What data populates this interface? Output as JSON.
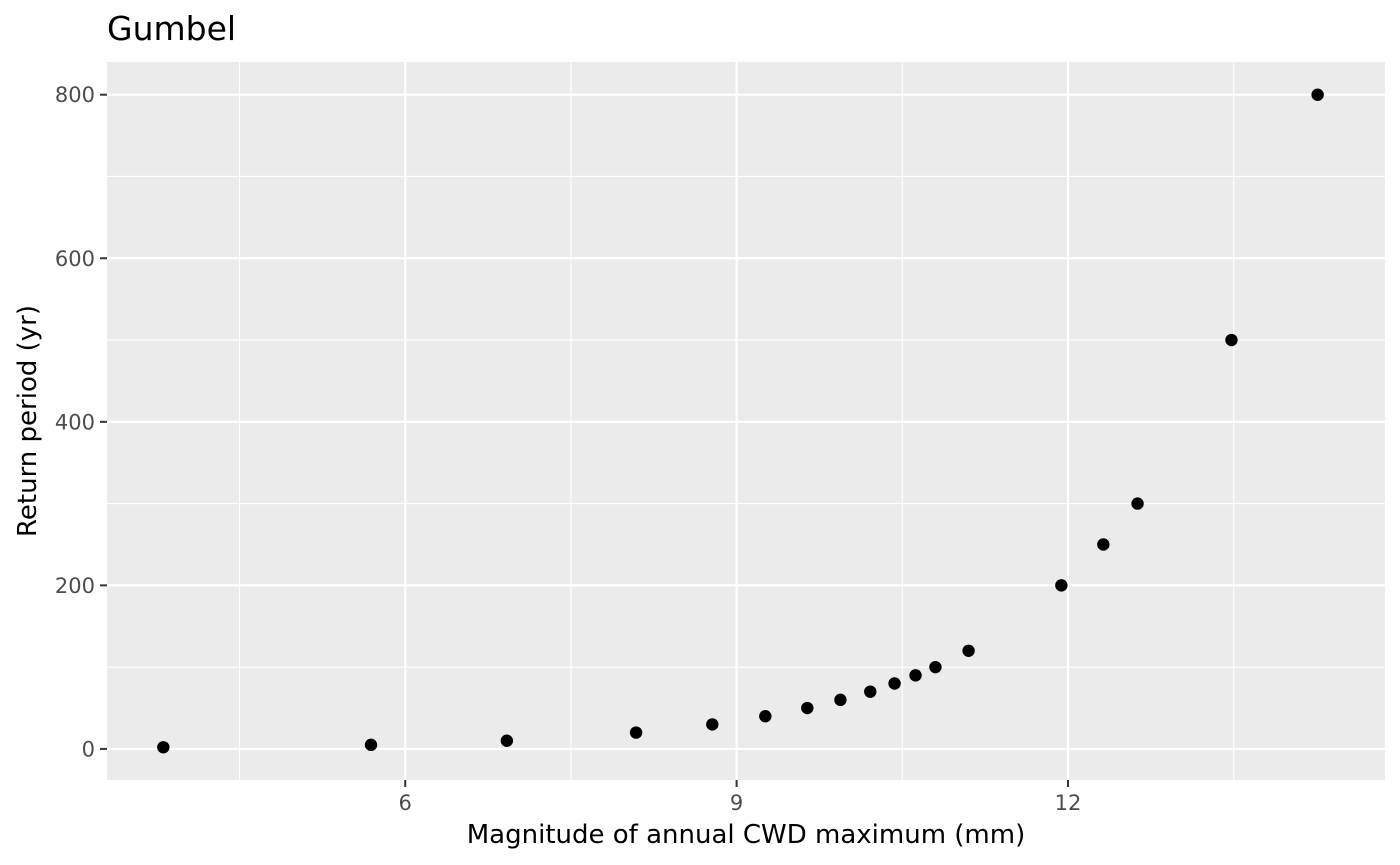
{
  "chart_data": {
    "type": "scatter",
    "title": "Gumbel",
    "xlabel": "Magnitude of annual CWD maximum (mm)",
    "ylabel": "Return period (yr)",
    "xlim": [
      3.3,
      14.87
    ],
    "ylim": [
      -38,
      840
    ],
    "x_ticks": [
      6,
      9,
      12
    ],
    "x_minor_ticks": [
      4.5,
      7.5,
      10.5,
      13.5
    ],
    "y_ticks": [
      0,
      200,
      400,
      600,
      800
    ],
    "y_minor_ticks": [
      100,
      300,
      500,
      700
    ],
    "grid": true,
    "legend": "none",
    "point_color": "#000000",
    "panel_color": "#ebebeb",
    "points": [
      {
        "x": 3.81,
        "y": 2
      },
      {
        "x": 5.69,
        "y": 5
      },
      {
        "x": 6.92,
        "y": 10
      },
      {
        "x": 8.09,
        "y": 20
      },
      {
        "x": 8.78,
        "y": 30
      },
      {
        "x": 9.26,
        "y": 40
      },
      {
        "x": 9.64,
        "y": 50
      },
      {
        "x": 9.94,
        "y": 60
      },
      {
        "x": 10.21,
        "y": 70
      },
      {
        "x": 10.43,
        "y": 80
      },
      {
        "x": 10.62,
        "y": 90
      },
      {
        "x": 10.8,
        "y": 100
      },
      {
        "x": 11.1,
        "y": 120
      },
      {
        "x": 11.94,
        "y": 200
      },
      {
        "x": 12.32,
        "y": 250
      },
      {
        "x": 12.63,
        "y": 300
      },
      {
        "x": 13.48,
        "y": 500
      },
      {
        "x": 14.26,
        "y": 800
      }
    ]
  }
}
